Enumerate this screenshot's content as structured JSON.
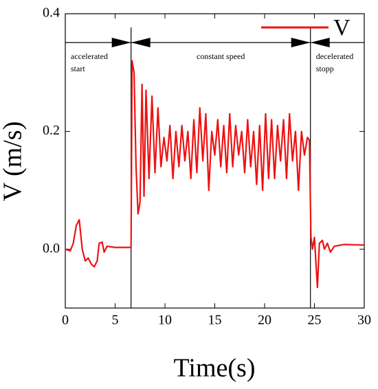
{
  "chart_data": {
    "type": "line",
    "xlabel": "Time(s)",
    "ylabel": "V (m/s)",
    "xlim": [
      0,
      30
    ],
    "ylim": [
      -0.1,
      0.4
    ],
    "xticks": [
      0,
      5,
      10,
      15,
      20,
      25,
      30
    ],
    "yticks": [
      {
        "value": 0,
        "label": "0.0"
      },
      0.2,
      0.4
    ],
    "legend": "upper right",
    "phase_boundaries": [
      6.6,
      24.6
    ],
    "phase_labels": [
      [
        "accelerated",
        "start"
      ],
      [
        "constant speed"
      ],
      [
        "decelerated",
        "stopp"
      ]
    ],
    "x": [
      0,
      0.5,
      0.8,
      1.1,
      1.4,
      1.7,
      2.0,
      2.3,
      2.6,
      2.9,
      3.2,
      3.4,
      3.7,
      3.9,
      4.2,
      5,
      6.6,
      6.7,
      6.9,
      7.1,
      7.3,
      7.5,
      7.7,
      7.9,
      8.1,
      8.4,
      8.7,
      9.0,
      9.3,
      9.6,
      9.9,
      10.2,
      10.5,
      10.8,
      11.1,
      11.4,
      11.7,
      12.0,
      12.3,
      12.6,
      12.9,
      13.2,
      13.5,
      13.8,
      14.1,
      14.4,
      14.7,
      15.0,
      15.3,
      15.6,
      15.9,
      16.2,
      16.5,
      16.8,
      17.1,
      17.4,
      17.7,
      18.0,
      18.3,
      18.6,
      18.9,
      19.2,
      19.5,
      19.8,
      20.1,
      20.4,
      20.7,
      21.0,
      21.3,
      21.6,
      21.9,
      22.2,
      22.5,
      22.8,
      23.1,
      23.4,
      23.7,
      24.0,
      24.3,
      24.5,
      24.65,
      24.8,
      25.0,
      25.3,
      25.5,
      25.8,
      26.0,
      26.3,
      26.6,
      27.0,
      28.0,
      30.0
    ],
    "series": [
      {
        "name": "V",
        "color": "#ee1111",
        "values": [
          0.0,
          -0.003,
          0.01,
          0.04,
          0.05,
          0.0,
          -0.02,
          -0.015,
          -0.025,
          -0.03,
          -0.02,
          0.01,
          0.012,
          -0.005,
          0.005,
          0.003,
          0.003,
          0.32,
          0.3,
          0.14,
          0.06,
          0.08,
          0.28,
          0.09,
          0.27,
          0.12,
          0.26,
          0.13,
          0.24,
          0.14,
          0.19,
          0.15,
          0.21,
          0.12,
          0.2,
          0.14,
          0.21,
          0.15,
          0.2,
          0.12,
          0.22,
          0.13,
          0.24,
          0.15,
          0.23,
          0.1,
          0.2,
          0.16,
          0.22,
          0.14,
          0.21,
          0.13,
          0.23,
          0.14,
          0.21,
          0.16,
          0.2,
          0.13,
          0.22,
          0.14,
          0.2,
          0.11,
          0.21,
          0.1,
          0.23,
          0.12,
          0.22,
          0.12,
          0.21,
          0.15,
          0.22,
          0.12,
          0.23,
          0.15,
          0.2,
          0.1,
          0.2,
          0.16,
          0.19,
          0.185,
          0.02,
          0.0,
          0.02,
          -0.065,
          0.01,
          0.015,
          0.0,
          0.01,
          -0.005,
          0.005,
          0.008,
          0.007
        ]
      }
    ]
  }
}
